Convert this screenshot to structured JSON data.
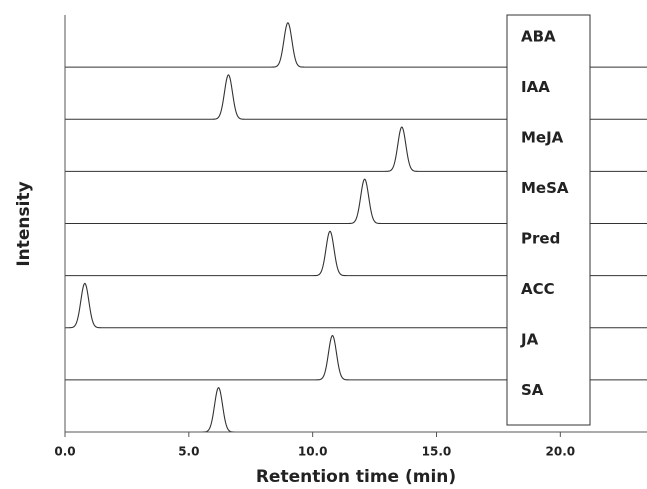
{
  "chart_data": {
    "type": "chromatogram",
    "x_label": "Retention time (min)",
    "y_label": "Intensity",
    "xlim": [
      0,
      23.5
    ],
    "xticks": [
      {
        "value": 0,
        "label": "0.0"
      },
      {
        "value": 5,
        "label": "5.0"
      },
      {
        "value": 10,
        "label": "10.0"
      },
      {
        "value": 15,
        "label": "15.0"
      },
      {
        "value": 20,
        "label": "20.0"
      }
    ],
    "series": [
      {
        "name": "ABA",
        "color": "#333333",
        "peak": 9.0
      },
      {
        "name": "IAA",
        "color": "#333333",
        "peak": 6.6
      },
      {
        "name": "MeJA",
        "color": "#333333",
        "peak": 13.6
      },
      {
        "name": "MeSA",
        "color": "#333333",
        "peak": 12.1
      },
      {
        "name": "Pred",
        "color": "#333333",
        "peak": 10.7
      },
      {
        "name": "ACC",
        "color": "#333333",
        "peak": 0.8
      },
      {
        "name": "JA",
        "color": "#333333",
        "peak": 10.8
      },
      {
        "name": "SA",
        "color": "#333333",
        "peak": 6.2
      }
    ]
  }
}
